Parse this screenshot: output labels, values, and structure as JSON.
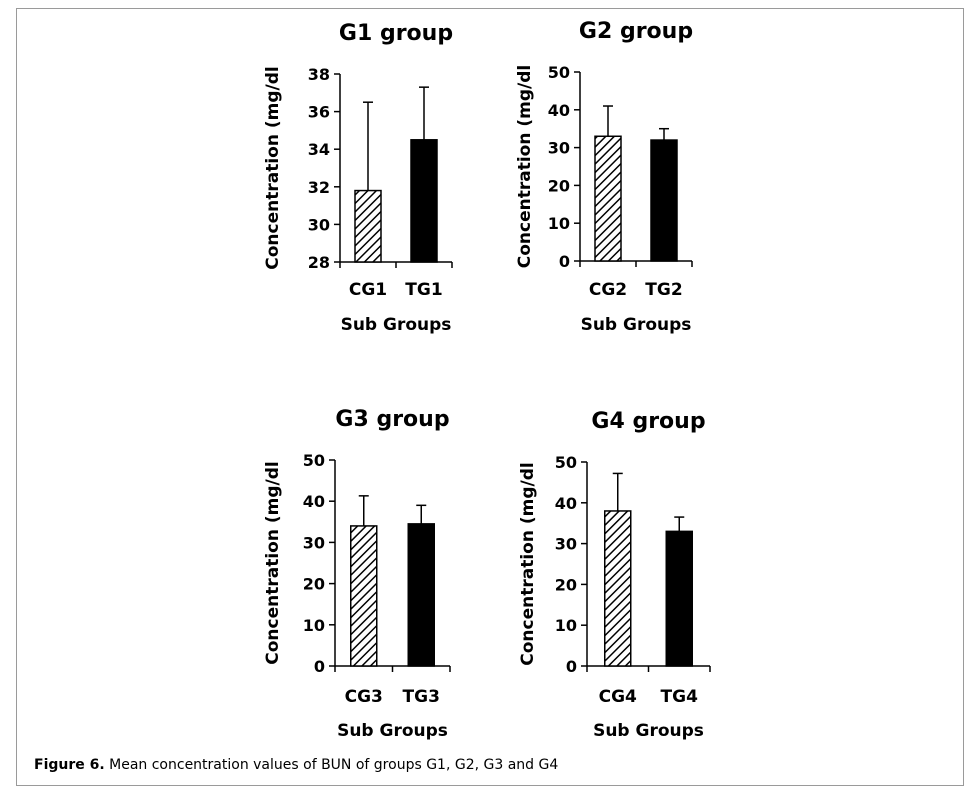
{
  "chart_data": [
    {
      "type": "bar",
      "title": "G1 group",
      "xlabel": "Sub Groups",
      "ylabel": "Concentration (mg/dl",
      "categories": [
        "CG1",
        "TG1"
      ],
      "values": [
        31.8,
        34.5
      ],
      "error": [
        4.7,
        2.8
      ],
      "patterns": [
        "hatched",
        "solid"
      ],
      "ylim": [
        28,
        38
      ],
      "yticks": [
        28,
        30,
        32,
        34,
        36,
        38
      ],
      "grid": false
    },
    {
      "type": "bar",
      "title": "G2 group",
      "xlabel": "Sub Groups",
      "ylabel": "Concentration (mg/dl",
      "categories": [
        "CG2",
        "TG2"
      ],
      "values": [
        33,
        32
      ],
      "error": [
        8,
        3
      ],
      "patterns": [
        "hatched",
        "solid"
      ],
      "ylim": [
        0,
        50
      ],
      "yticks": [
        0,
        10,
        20,
        30,
        40,
        50
      ],
      "grid": false
    },
    {
      "type": "bar",
      "title": "G3 group",
      "xlabel": "Sub Groups",
      "ylabel": "Concentration (mg/dl",
      "categories": [
        "CG3",
        "TG3"
      ],
      "values": [
        34,
        34.5
      ],
      "error": [
        7.3,
        4.5
      ],
      "patterns": [
        "hatched",
        "solid"
      ],
      "ylim": [
        0,
        50
      ],
      "yticks": [
        0,
        10,
        20,
        30,
        40,
        50
      ],
      "grid": false
    },
    {
      "type": "bar",
      "title": "G4 group",
      "xlabel": "Sub Groups",
      "ylabel": "Concentration (mg/dl",
      "categories": [
        "CG4",
        "TG4"
      ],
      "values": [
        38,
        33
      ],
      "error": [
        9.2,
        3.5
      ],
      "patterns": [
        "hatched",
        "solid"
      ],
      "ylim": [
        0,
        50
      ],
      "yticks": [
        0,
        10,
        20,
        30,
        40,
        50
      ],
      "grid": false
    }
  ],
  "caption": {
    "label": "Figure 6.",
    "text": " Mean concentration values of BUN of groups G1, G2, G3 and G4"
  },
  "colors": {
    "bar_solid": "#000000",
    "hatch": "#000000",
    "axis": "#000000",
    "frame_border": "#9a9a9a"
  }
}
